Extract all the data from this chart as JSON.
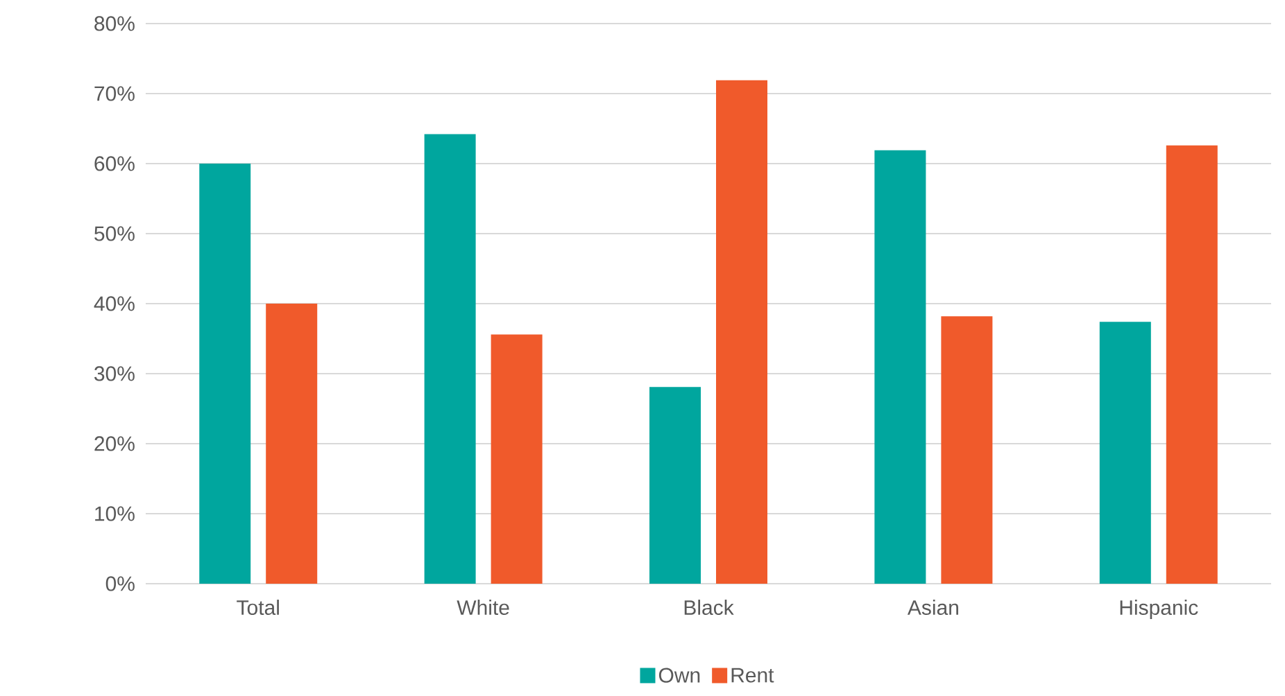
{
  "chart_data": {
    "type": "bar",
    "categories": [
      "Total",
      "White",
      "Black",
      "Asian",
      "Hispanic"
    ],
    "series": [
      {
        "name": "Own",
        "color": "#00a69e",
        "values": [
          60,
          64.2,
          28.1,
          61.9,
          37.4
        ]
      },
      {
        "name": "Rent",
        "color": "#f05a2b",
        "values": [
          40,
          35.6,
          71.9,
          38.2,
          62.6
        ]
      }
    ],
    "ylim": [
      0,
      80
    ],
    "yticks": [
      {
        "value": 0,
        "label": "0%"
      },
      {
        "value": 10,
        "label": "10%"
      },
      {
        "value": 20,
        "label": "20%"
      },
      {
        "value": 30,
        "label": "30%"
      },
      {
        "value": 40,
        "label": "40%"
      },
      {
        "value": 50,
        "label": "50%"
      },
      {
        "value": 60,
        "label": "60%"
      },
      {
        "value": 70,
        "label": "70%"
      },
      {
        "value": 80,
        "label": "80%"
      }
    ],
    "grid": "y",
    "legend": "bottom"
  }
}
